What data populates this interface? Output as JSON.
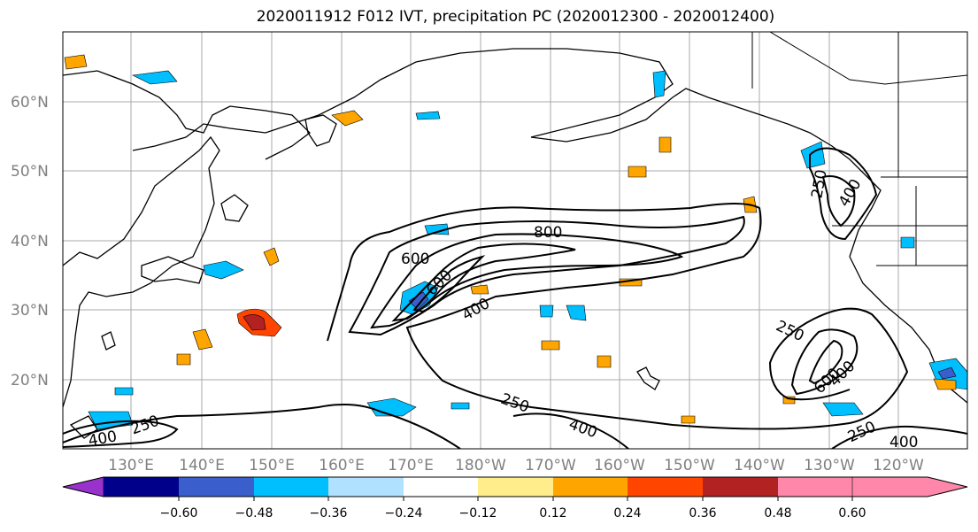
{
  "title": "2020011912 F012 IVT, precipitation PC (2020012300 - 2020012400)",
  "lat_labels": [
    "60°N",
    "50°N",
    "40°N",
    "30°N",
    "20°N"
  ],
  "lon_labels": [
    "130°E",
    "140°E",
    "150°E",
    "160°E",
    "170°E",
    "180°W",
    "170°W",
    "160°W",
    "150°W",
    "140°W",
    "130°W",
    "120°W"
  ],
  "contour_labels": [
    "600",
    "800",
    "600",
    "400",
    "250",
    "400",
    "250",
    "250",
    "600",
    "400",
    "250",
    "400",
    "250",
    "400",
    "400"
  ],
  "colorbar": {
    "colors": [
      "#9932cc",
      "#00008b",
      "#3a5fcd",
      "#00bfff",
      "#b0e2ff",
      "#ffffff",
      "#ffec8b",
      "#ffa500",
      "#ff4500",
      "#b22222",
      "#ff88aa"
    ],
    "tick_labels": [
      "−0.60",
      "−0.48",
      "−0.36",
      "−0.24",
      "−0.12",
      "0.12",
      "0.24",
      "0.36",
      "0.48",
      "0.60"
    ]
  }
}
